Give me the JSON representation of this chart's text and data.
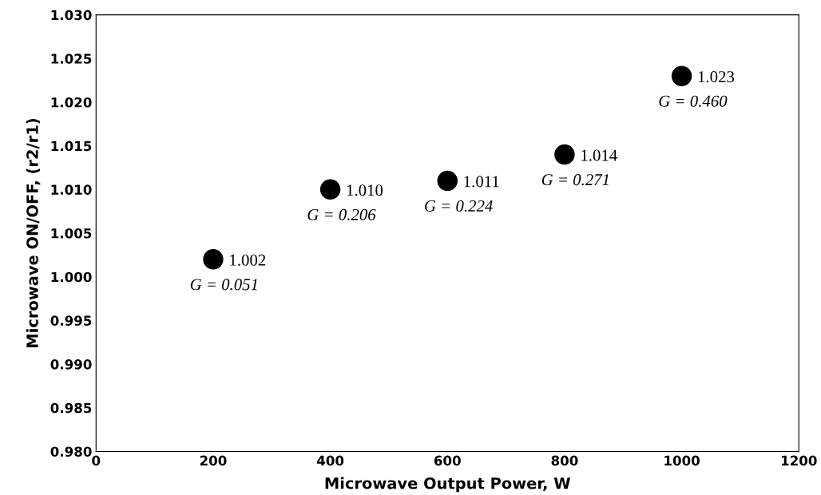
{
  "chart_data": {
    "type": "scatter",
    "xlabel": "Microwave Output Power, W",
    "ylabel": "Microwave ON/OFF, (r2/r1)",
    "x": [
      200,
      400,
      600,
      800,
      1000
    ],
    "series": [
      {
        "color": "#000000",
        "values": [
          1.002,
          1.01,
          1.011,
          1.014,
          1.023
        ],
        "value_labels": [
          "1.002",
          "1.010",
          "1.011",
          "1.014",
          "1.023"
        ]
      }
    ],
    "marker": "circle",
    "xlim": [
      0,
      1200
    ],
    "xticks": [
      0,
      200,
      400,
      600,
      800,
      1000,
      1200
    ],
    "ylim": [
      0.98,
      1.03
    ],
    "yticks": [
      {
        "value": 0.98,
        "label": "0.980"
      },
      {
        "value": 0.985,
        "label": "0.985"
      },
      {
        "value": 0.99,
        "label": "0.990"
      },
      {
        "value": 0.995,
        "label": "0.995"
      },
      {
        "value": 1.0,
        "label": "1.000"
      },
      {
        "value": 1.005,
        "label": "1.005"
      },
      {
        "value": 1.01,
        "label": "1.010"
      },
      {
        "value": 1.015,
        "label": "1.015"
      },
      {
        "value": 1.02,
        "label": "1.020"
      },
      {
        "value": 1.025,
        "label": "1.025"
      },
      {
        "value": 1.03,
        "label": "1.030"
      }
    ],
    "annotations": [
      {
        "text": "G = 0.051",
        "x": 200,
        "y": 1.002
      },
      {
        "text": "G = 0.206",
        "x": 400,
        "y": 1.01
      },
      {
        "text": "G = 0.224",
        "x": 600,
        "y": 1.011
      },
      {
        "text": "G = 0.271",
        "x": 800,
        "y": 1.014
      },
      {
        "text": "G = 0.460",
        "x": 1000,
        "y": 1.023
      }
    ],
    "grid": false,
    "legend": false
  }
}
